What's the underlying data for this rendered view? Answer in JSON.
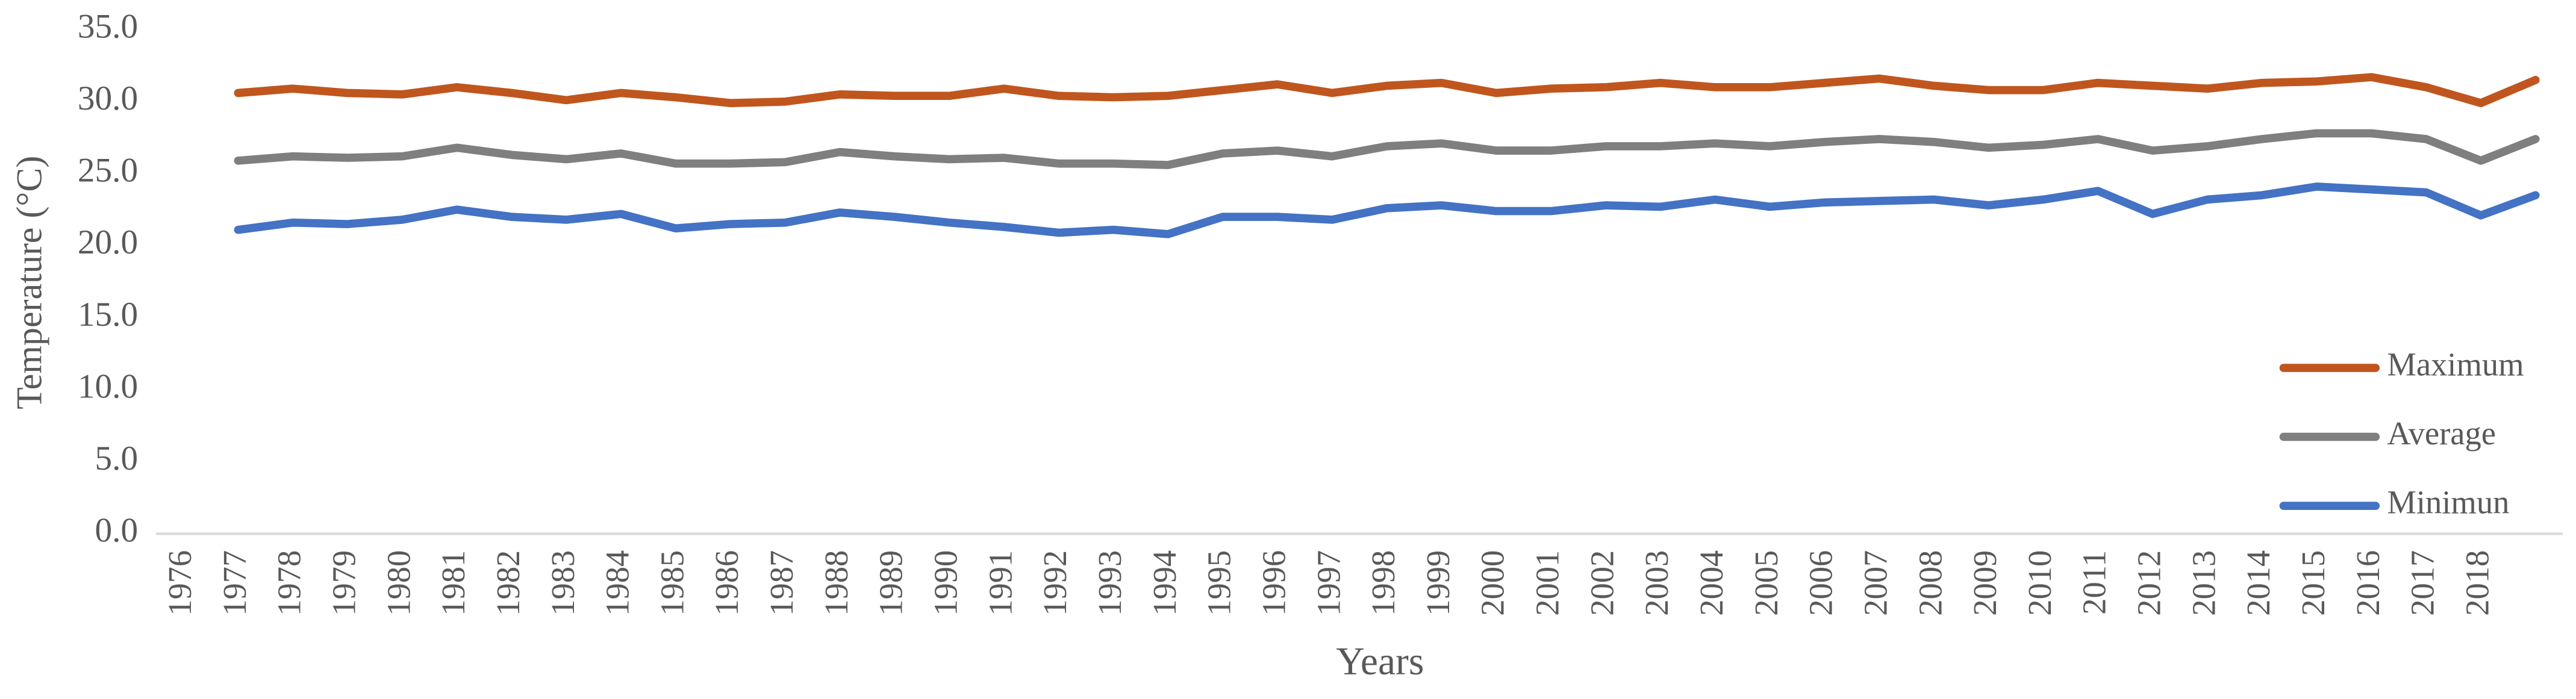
{
  "chart_data": {
    "type": "line",
    "x_label": "Years",
    "y_label": "Temperature (°C)",
    "categories": [
      "1976",
      "1977",
      "1978",
      "1979",
      "1980",
      "1981",
      "1982",
      "1983",
      "1984",
      "1985",
      "1986",
      "1987",
      "1988",
      "1989",
      "1990",
      "1991",
      "1992",
      "1993",
      "1994",
      "1995",
      "1996",
      "1997",
      "1998",
      "1999",
      "2000",
      "2001",
      "2002",
      "2003",
      "2004",
      "2005",
      "2006",
      "2007",
      "2008",
      "2009",
      "2010",
      "2011",
      "2012",
      "2013",
      "2014",
      "2015",
      "2016",
      "2017",
      "2018",
      null
    ],
    "series": [
      {
        "name": "Maximum",
        "color": "#c0561e",
        "values": [
          null,
          30.6,
          30.9,
          30.6,
          30.5,
          31.0,
          30.6,
          30.1,
          30.6,
          30.3,
          29.9,
          30.0,
          30.5,
          30.4,
          30.4,
          30.9,
          30.4,
          30.3,
          30.4,
          30.8,
          31.2,
          30.6,
          31.1,
          31.3,
          30.6,
          30.9,
          31.0,
          31.3,
          31.0,
          31.0,
          31.3,
          31.6,
          31.1,
          30.8,
          30.8,
          31.3,
          31.1,
          30.9,
          31.3,
          31.4,
          31.7,
          31.0,
          29.9,
          31.5
        ]
      },
      {
        "name": "Average",
        "color": "#7f7f7f",
        "values": [
          null,
          25.9,
          26.2,
          26.1,
          26.2,
          26.8,
          26.3,
          26.0,
          26.4,
          25.7,
          25.7,
          25.8,
          26.5,
          26.2,
          26.0,
          26.1,
          25.7,
          25.7,
          25.6,
          26.4,
          26.6,
          26.2,
          26.9,
          27.1,
          26.6,
          26.6,
          26.9,
          26.9,
          27.1,
          26.9,
          27.2,
          27.4,
          27.2,
          26.8,
          27.0,
          27.4,
          26.6,
          26.9,
          27.4,
          27.8,
          27.8,
          27.4,
          25.9,
          27.4
        ]
      },
      {
        "name": "Minimun",
        "color": "#4472c4",
        "values": [
          null,
          21.1,
          21.6,
          21.5,
          21.8,
          22.5,
          22.0,
          21.8,
          22.2,
          21.2,
          21.5,
          21.6,
          22.3,
          22.0,
          21.6,
          21.3,
          20.9,
          21.1,
          20.8,
          22.0,
          22.0,
          21.8,
          22.6,
          22.8,
          22.4,
          22.4,
          22.8,
          22.7,
          23.2,
          22.7,
          23.0,
          23.1,
          23.2,
          22.8,
          23.2,
          23.8,
          22.2,
          23.2,
          23.5,
          24.1,
          23.9,
          23.7,
          22.1,
          23.5
        ]
      }
    ],
    "ylim": [
      0,
      35
    ],
    "yticks": [
      {
        "value": 0,
        "label": "0.0"
      },
      {
        "value": 5,
        "label": "5.0"
      },
      {
        "value": 10,
        "label": "10.0"
      },
      {
        "value": 15,
        "label": "15.0"
      },
      {
        "value": 20,
        "label": "20.0"
      },
      {
        "value": 25,
        "label": "25.0"
      },
      {
        "value": 30,
        "label": "30.0"
      },
      {
        "value": 35,
        "label": "35.0"
      }
    ],
    "grid": false,
    "legend": "lower right"
  }
}
